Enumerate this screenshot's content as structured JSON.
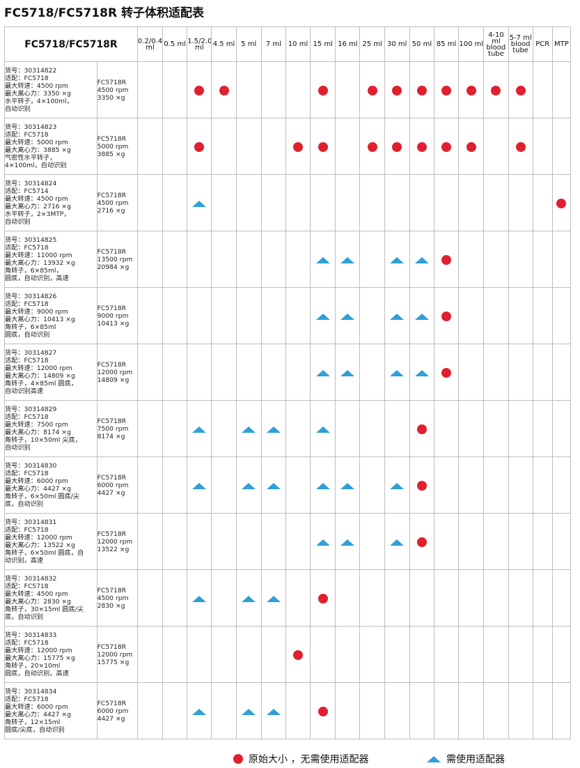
{
  "title": "FC5718/FC5718R 转子体积适配表",
  "table": {
    "header_title": "FC5718/FC5718R",
    "columns": [
      [
        "0.2/0.4",
        "ml"
      ],
      [
        "0.5 ml"
      ],
      [
        "1.5/2.0",
        "ml"
      ],
      [
        "4.5 ml"
      ],
      [
        "5 ml"
      ],
      [
        "7 ml"
      ],
      [
        "10 ml"
      ],
      [
        "15 ml"
      ],
      [
        "16 ml"
      ],
      [
        "25 ml"
      ],
      [
        "30 ml"
      ],
      [
        "50 ml"
      ],
      [
        "85 ml"
      ],
      [
        "100 ml"
      ],
      [
        "4-10",
        "ml",
        "blood",
        "tube"
      ],
      [
        "5-7 ml",
        "blood",
        "tube"
      ],
      [
        "PCR"
      ],
      [
        "MTP"
      ]
    ],
    "rows": [
      {
        "desc": [
          "货号：30314822",
          "适配：FC5718",
          "最大转速：4500 rpm",
          "最大离心力：3350 ×g",
          "水平转子，4×100ml，",
          "自动识别"
        ],
        "spec": [
          "FC5718R",
          "4500 rpm",
          "3350 ×g"
        ],
        "marks": [
          "",
          "",
          "c",
          "c",
          "",
          "",
          "",
          "c",
          "",
          "c",
          "c",
          "c",
          "c",
          "c",
          "c",
          "c",
          "",
          ""
        ]
      },
      {
        "desc": [
          "货号：30314823",
          "适配：FC5718",
          "最大转速：5000 rpm",
          "最大离心力：3885 ×g",
          "气密性水平转子，",
          "4×100ml，自动识别"
        ],
        "spec": [
          "FC5718R",
          "5000 rpm",
          "3885 ×g"
        ],
        "marks": [
          "",
          "",
          "c",
          "",
          "",
          "",
          "c",
          "c",
          "",
          "c",
          "c",
          "c",
          "c",
          "c",
          "",
          "c",
          "",
          ""
        ]
      },
      {
        "desc": [
          "货号：30314824",
          "适配：FC5714",
          "最大转速：4500 rpm",
          "最大离心力：2716 ×g",
          "水平转子，2×3MTP，",
          "自动识别"
        ],
        "spec": [
          "FC5718R",
          "4500 rpm",
          "2716 ×g"
        ],
        "marks": [
          "",
          "",
          "t",
          "",
          "",
          "",
          "",
          "",
          "",
          "",
          "",
          "",
          "",
          "",
          "",
          "",
          "",
          "c"
        ]
      },
      {
        "desc": [
          "货号：30314825",
          "适配：FC5718",
          "最大转速：11000 rpm",
          "最大离心力：13932 ×g",
          "角转子，6×85ml，",
          "圆底，自动识别，高速"
        ],
        "spec": [
          "FC5718R",
          "13500 rpm",
          "20984 ×g"
        ],
        "marks": [
          "",
          "",
          "",
          "",
          "",
          "",
          "",
          "t",
          "t",
          "",
          "t",
          "t",
          "c",
          "",
          "",
          "",
          "",
          ""
        ]
      },
      {
        "desc": [
          "货号：30314826",
          "适配：FC5718",
          "最大转速：9000 rpm",
          "最大离心力：10413 ×g",
          "角转子，6×85ml",
          "圆底，自动识别"
        ],
        "spec": [
          "FC5718R",
          "9000 rpm",
          "10413 ×g"
        ],
        "marks": [
          "",
          "",
          "",
          "",
          "",
          "",
          "",
          "t",
          "t",
          "",
          "t",
          "t",
          "c",
          "",
          "",
          "",
          "",
          ""
        ]
      },
      {
        "desc": [
          "货号：30314827",
          "适配：FC5718",
          "最大转速：12000 rpm",
          "最大离心力：14809 ×g",
          "角转子，4×85ml 圆底，",
          "自动识别高速"
        ],
        "spec": [
          "FC5718R",
          "12000 rpm",
          "14809 ×g"
        ],
        "marks": [
          "",
          "",
          "",
          "",
          "",
          "",
          "",
          "t",
          "t",
          "",
          "t",
          "t",
          "c",
          "",
          "",
          "",
          "",
          ""
        ]
      },
      {
        "desc": [
          "货号：30314829",
          "适配：FC5718",
          "最大转速：7500 rpm",
          "最大离心力：8174 ×g",
          "角转子，10×50ml 尖底，",
          "自动识别"
        ],
        "spec": [
          "FC5718R",
          "7500 rpm",
          "8174 ×g"
        ],
        "marks": [
          "",
          "",
          "t",
          "",
          "t",
          "t",
          "",
          "t",
          "",
          "",
          "",
          "c",
          "",
          "",
          "",
          "",
          "",
          ""
        ]
      },
      {
        "desc": [
          "货号：30314830",
          "适配：FC5718",
          "最大转速：6000 rpm",
          "最大离心力：4427 ×g",
          "角转子，6×50ml 圆底/尖",
          "底，自动识别"
        ],
        "spec": [
          "FC5718R",
          "6000 rpm",
          "4427 ×g"
        ],
        "marks": [
          "",
          "",
          "t",
          "",
          "t",
          "t",
          "",
          "t",
          "t",
          "",
          "t",
          "c",
          "",
          "",
          "",
          "",
          "",
          ""
        ]
      },
      {
        "desc": [
          "货号：30314831",
          "适配：FC5718",
          "最大转速：12000 rpm",
          "最大离心力：13522 ×g",
          "角转子，6×50ml 圆底，自",
          "动识别，高速"
        ],
        "spec": [
          "FC5718R",
          "12000 rpm",
          "13522 ×g"
        ],
        "marks": [
          "",
          "",
          "",
          "",
          "",
          "",
          "",
          "t",
          "t",
          "",
          "t",
          "c",
          "",
          "",
          "",
          "",
          "",
          ""
        ]
      },
      {
        "desc": [
          "货号：30314832",
          "适配：FC5718",
          "最大转速：4500 rpm",
          "最大离心力：2830 ×g",
          "角转子，30×15ml 圆底/尖",
          "底，自动识别"
        ],
        "spec": [
          "FC5718R",
          "4500 rpm",
          "2830 ×g"
        ],
        "marks": [
          "",
          "",
          "t",
          "",
          "t",
          "t",
          "",
          "c",
          "",
          "",
          "",
          "",
          "",
          "",
          "",
          "",
          "",
          ""
        ]
      },
      {
        "desc": [
          "货号：30314833",
          "适配：FC5718",
          "最大转速：12000 rpm",
          "最大离心力：15775 ×g",
          "角转子，20×10ml",
          "圆底，自动识别，高速"
        ],
        "spec": [
          "FC5718R",
          "12000 rpm",
          "15775 ×g"
        ],
        "marks": [
          "",
          "",
          "",
          "",
          "",
          "",
          "c",
          "",
          "",
          "",
          "",
          "",
          "",
          "",
          "",
          "",
          "",
          ""
        ]
      },
      {
        "desc": [
          "货号：30314834",
          "适配：FC5718",
          "最大转速：6000 rpm",
          "最大离心力：4427 ×g",
          "角转子，12×15ml",
          "圆底/尖底，自动识别"
        ],
        "spec": [
          "FC5718R",
          "6000 rpm",
          "4427 ×g"
        ],
        "marks": [
          "",
          "",
          "t",
          "",
          "t",
          "t",
          "",
          "c",
          "",
          "",
          "",
          "",
          "",
          "",
          "",
          "",
          "",
          ""
        ]
      }
    ]
  },
  "legend": {
    "circle_label": "原始大小 ，无需使用适配器",
    "triangle_label": "需使用适配器"
  },
  "colors": {
    "circle": "#e0202e",
    "triangle": "#2f9fd7",
    "border": "#bdbdbd"
  }
}
